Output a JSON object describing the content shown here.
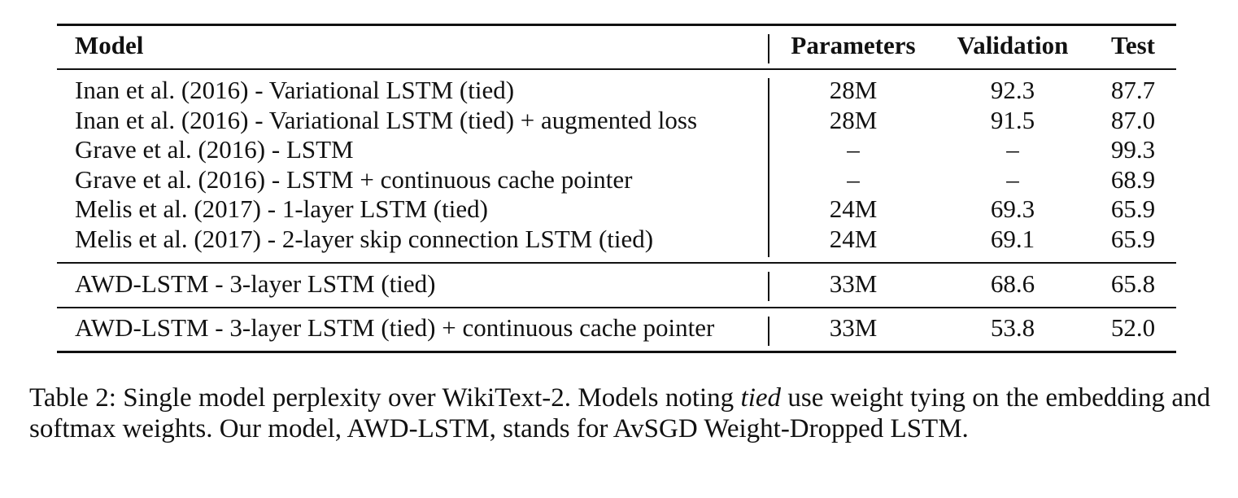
{
  "table": {
    "headers": {
      "model": "Model",
      "parameters": "Parameters",
      "validation": "Validation",
      "test": "Test"
    },
    "groups": [
      {
        "rows": [
          {
            "model": "Inan et al. (2016) - Variational LSTM (tied)",
            "parameters": "28M",
            "validation": "92.3",
            "test": "87.7"
          },
          {
            "model": "Inan et al. (2016) - Variational LSTM (tied) + augmented loss",
            "parameters": "28M",
            "validation": "91.5",
            "test": "87.0"
          },
          {
            "model": "Grave et al. (2016) - LSTM",
            "parameters": "–",
            "validation": "–",
            "test": "99.3"
          },
          {
            "model": "Grave et al. (2016) - LSTM + continuous cache pointer",
            "parameters": "–",
            "validation": "–",
            "test": "68.9"
          },
          {
            "model": "Melis et al. (2017) - 1-layer LSTM (tied)",
            "parameters": "24M",
            "validation": "69.3",
            "test": "65.9"
          },
          {
            "model": "Melis et al. (2017) - 2-layer skip connection LSTM (tied)",
            "parameters": "24M",
            "validation": "69.1",
            "test": "65.9"
          }
        ]
      },
      {
        "rows": [
          {
            "model": "AWD-LSTM - 3-layer LSTM (tied)",
            "parameters": "33M",
            "validation": "68.6",
            "test": "65.8"
          }
        ]
      },
      {
        "rows": [
          {
            "model": "AWD-LSTM - 3-layer LSTM (tied) + continuous cache pointer",
            "parameters": "33M",
            "validation": "53.8",
            "test": "52.0"
          }
        ]
      }
    ]
  },
  "caption": {
    "part1": "Table 2:  Single model perplexity over WikiText-2.  Models noting ",
    "emphasis": "tied",
    "part2": " use weight tying on the embedding and softmax weights.  Our model, AWD-LSTM, stands for AvSGD Weight-Dropped LSTM."
  }
}
